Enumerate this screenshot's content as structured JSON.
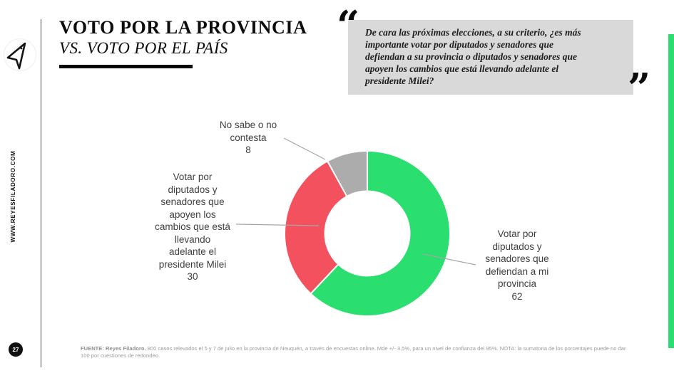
{
  "slide": {
    "title_line1": "VOTO POR LA PROVINCIA",
    "title_line2": "VS. VOTO POR EL PAÍS"
  },
  "quote": {
    "open_mark": "“",
    "close_mark": "”",
    "text": "De cara las próximas elecciones, a su criterio, ¿es más\nimportante votar por diputados y senadores que\ndefiendan a su provincia o diputados y senadores que\napoyen los cambios que está llevando adelante el\npresidente Milei?"
  },
  "sidebar": {
    "website": "WWW.REYESFILADORO.COM",
    "page_number": "27",
    "logo_icon": "arrow-cursor-icon"
  },
  "chart_data": {
    "type": "pie",
    "subtype": "donut",
    "title": "",
    "categories": [
      "Votar por diputados y senadores que defiendan a mi provincia",
      "Votar por diputados y senadores que apoyen los cambios que está llevando adelante el presidente Milei",
      "No sabe o no contesta"
    ],
    "values": [
      62,
      30,
      8
    ],
    "colors": [
      "#2ade70",
      "#f4515e",
      "#acacac"
    ],
    "start_angle_deg": 0,
    "direction": "clockwise",
    "legend_position": "callout-labels",
    "labels": {
      "provincia": "Votar por\ndiputados y\nsenadores que\ndefiendan a mi\nprovincia\n62",
      "milei": "Votar por\ndiputados y\nsenadores que\napoyen los\ncambios que está\nllevando\nadelante el\npresidente Milei\n30",
      "ns_nc": "No sabe o no\ncontesta\n8"
    }
  },
  "footer": {
    "source_bold": "FUENTE: Reyes Filadoro.",
    "source_rest": " 800 casos relevados el 5 y 7 de julio en la provincia de Neuquén, a través de encuestas online. Mde +/- 3,5%, para un nivel de confianza del 95%. NOTA: la sumatoria de los porcentajes puede no dar 100 por cuestiones de redondeo."
  },
  "accent": {
    "green_bar_color": "#2ade70",
    "quote_box_color": "#d9d9d9"
  }
}
